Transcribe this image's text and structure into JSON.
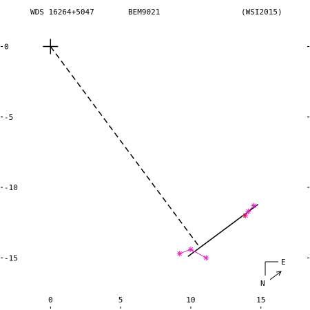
{
  "chart_data": {
    "type": "scatter",
    "header": {
      "left": "WDS 16264+5047",
      "center": "BEM9021",
      "right": "(WSI2015)"
    },
    "xlim": [
      -3.6,
      18.5
    ],
    "ylim": [
      -18.7,
      3.3
    ],
    "x_ticks": [
      0,
      5,
      10,
      15
    ],
    "y_ticks": [
      0,
      -5,
      -10,
      -15
    ],
    "x_tick_labels": [
      "0",
      "5",
      "10",
      "15"
    ],
    "y_tick_labels": [
      "0",
      "-5",
      "-10",
      "-15"
    ],
    "grid": false,
    "primary_marker": {
      "x": 0,
      "y": 0,
      "symbol": "plus"
    },
    "dashed_connector": {
      "from": [
        0,
        0
      ],
      "to": [
        10.6,
        -14.2
      ]
    },
    "solid_segment": {
      "from": [
        9.8,
        -14.9
      ],
      "to": [
        14.8,
        -11.2
      ]
    },
    "series": [
      {
        "marker": "asterisk",
        "color": "#e020c0",
        "points": [
          {
            "x": 9.2,
            "y": -14.7
          },
          {
            "x": 10.0,
            "y": -14.4
          },
          {
            "x": 11.1,
            "y": -15.0
          }
        ]
      },
      {
        "marker": "asterisk",
        "color": "#e020c0",
        "points": [
          {
            "x": 13.9,
            "y": -12.0
          },
          {
            "x": 14.1,
            "y": -11.7
          },
          {
            "x": 14.5,
            "y": -11.3
          }
        ]
      }
    ],
    "red_marker": {
      "x": 13.8,
      "y": -12.0,
      "color": "#e02020"
    },
    "compass": {
      "north": "N",
      "east": "E"
    }
  }
}
